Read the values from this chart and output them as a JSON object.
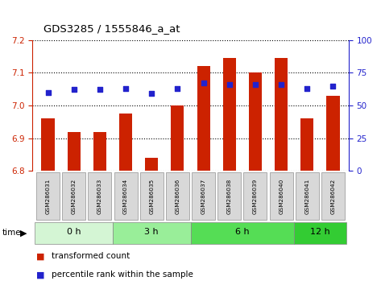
{
  "title": "GDS3285 / 1555846_a_at",
  "samples": [
    "GSM286031",
    "GSM286032",
    "GSM286033",
    "GSM286034",
    "GSM286035",
    "GSM286036",
    "GSM286037",
    "GSM286038",
    "GSM286039",
    "GSM286040",
    "GSM286041",
    "GSM286042"
  ],
  "transformed_count": [
    6.96,
    6.92,
    6.92,
    6.975,
    6.84,
    7.0,
    7.12,
    7.145,
    7.1,
    7.145,
    6.96,
    7.03
  ],
  "percentile_rank": [
    60,
    62,
    62,
    63,
    59,
    63,
    67,
    66,
    66,
    66,
    63,
    65
  ],
  "ylim_left": [
    6.8,
    7.2
  ],
  "ylim_right": [
    0,
    100
  ],
  "yticks_left": [
    6.8,
    6.9,
    7.0,
    7.1,
    7.2
  ],
  "yticks_right": [
    0,
    25,
    50,
    75,
    100
  ],
  "groups": [
    {
      "label": "0 h",
      "start": 0,
      "end": 3
    },
    {
      "label": "3 h",
      "start": 3,
      "end": 6
    },
    {
      "label": "6 h",
      "start": 6,
      "end": 10
    },
    {
      "label": "12 h",
      "start": 10,
      "end": 12
    }
  ],
  "group_colors": [
    "#d4f5d4",
    "#99ee99",
    "#55dd55",
    "#33cc33"
  ],
  "bar_color": "#cc2200",
  "dot_color": "#2222cc",
  "bar_bottom": 6.8,
  "legend_bar_label": "transformed count",
  "legend_dot_label": "percentile rank within the sample",
  "title_color": "#000000",
  "left_axis_color": "#cc2200",
  "right_axis_color": "#2222cc",
  "sample_box_color": "#d8d8d8",
  "sample_box_edge": "#aaaaaa"
}
